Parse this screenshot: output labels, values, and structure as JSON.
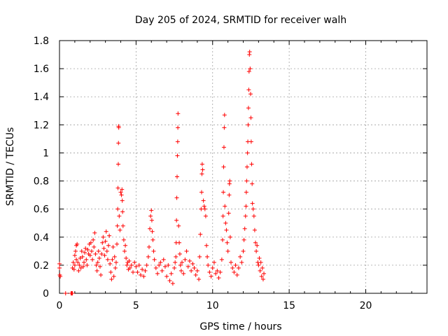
{
  "chart_data": {
    "type": "scatter",
    "title": "Day 205 of 2024, SRMTID for receiver walh",
    "xlabel": "GPS time / hours",
    "ylabel": "SRMTID / TECUs",
    "xlim": [
      0,
      24
    ],
    "ylim": [
      0,
      1.8
    ],
    "x_ticks": [
      0,
      5,
      10,
      15,
      20
    ],
    "x_tick_labels": [
      "0",
      "5",
      "10",
      "15",
      "20"
    ],
    "y_ticks": [
      0,
      0.2,
      0.4,
      0.6,
      0.8,
      1.0,
      1.2,
      1.4,
      1.6,
      1.8
    ],
    "y_tick_labels": [
      "0",
      "0.2",
      "0.4",
      "0.6",
      "0.8",
      "1",
      "1.2",
      "1.4",
      "1.6",
      "1.8"
    ],
    "grid": true,
    "marker": "+",
    "color": "#ff0000",
    "series": [
      {
        "name": "SRMTID",
        "points": [
          [
            0.0,
            0.21
          ],
          [
            0.0,
            0.18
          ],
          [
            0.02,
            0.13
          ],
          [
            0.05,
            0.12
          ],
          [
            0.4,
            0.0
          ],
          [
            0.75,
            0.0
          ],
          [
            0.8,
            0.0
          ],
          [
            0.85,
            0.0
          ],
          [
            0.85,
            0.18
          ],
          [
            0.9,
            0.22
          ],
          [
            0.95,
            0.17
          ],
          [
            1.0,
            0.27
          ],
          [
            1.0,
            0.2
          ],
          [
            1.05,
            0.3
          ],
          [
            1.1,
            0.34
          ],
          [
            1.1,
            0.24
          ],
          [
            1.15,
            0.35
          ],
          [
            1.2,
            0.22
          ],
          [
            1.25,
            0.16
          ],
          [
            1.3,
            0.2
          ],
          [
            1.35,
            0.25
          ],
          [
            1.4,
            0.18
          ],
          [
            1.45,
            0.3
          ],
          [
            1.5,
            0.26
          ],
          [
            1.55,
            0.19
          ],
          [
            1.6,
            0.22
          ],
          [
            1.65,
            0.29
          ],
          [
            1.7,
            0.32
          ],
          [
            1.75,
            0.24
          ],
          [
            1.8,
            0.2
          ],
          [
            1.85,
            0.31
          ],
          [
            1.9,
            0.28
          ],
          [
            1.95,
            0.35
          ],
          [
            2.0,
            0.27
          ],
          [
            2.05,
            0.36
          ],
          [
            2.1,
            0.3
          ],
          [
            2.15,
            0.24
          ],
          [
            2.2,
            0.38
          ],
          [
            2.25,
            0.33
          ],
          [
            2.3,
            0.43
          ],
          [
            2.35,
            0.28
          ],
          [
            2.4,
            0.2
          ],
          [
            2.45,
            0.16
          ],
          [
            2.5,
            0.22
          ],
          [
            2.55,
            0.3
          ],
          [
            2.6,
            0.25
          ],
          [
            2.65,
            0.19
          ],
          [
            2.7,
            0.13
          ],
          [
            2.75,
            0.28
          ],
          [
            2.8,
            0.36
          ],
          [
            2.85,
            0.4
          ],
          [
            2.9,
            0.32
          ],
          [
            2.95,
            0.27
          ],
          [
            3.0,
            0.37
          ],
          [
            3.05,
            0.44
          ],
          [
            3.1,
            0.3
          ],
          [
            3.15,
            0.24
          ],
          [
            3.2,
            0.34
          ],
          [
            3.25,
            0.41
          ],
          [
            3.3,
            0.21
          ],
          [
            3.35,
            0.15
          ],
          [
            3.4,
            0.1
          ],
          [
            3.45,
            0.24
          ],
          [
            3.5,
            0.33
          ],
          [
            3.55,
            0.12
          ],
          [
            3.6,
            0.26
          ],
          [
            3.65,
            0.18
          ],
          [
            3.7,
            0.22
          ],
          [
            3.75,
            0.35
          ],
          [
            3.78,
            0.48
          ],
          [
            3.8,
            0.6
          ],
          [
            3.82,
            0.75
          ],
          [
            3.84,
            0.92
          ],
          [
            3.85,
            1.07
          ],
          [
            3.86,
            1.19
          ],
          [
            3.87,
            1.18
          ],
          [
            3.9,
            0.55
          ],
          [
            3.95,
            0.45
          ],
          [
            4.0,
            0.72
          ],
          [
            4.05,
            0.7
          ],
          [
            4.08,
            0.74
          ],
          [
            4.1,
            0.66
          ],
          [
            4.12,
            0.58
          ],
          [
            4.15,
            0.48
          ],
          [
            4.2,
            0.38
          ],
          [
            4.25,
            0.3
          ],
          [
            4.3,
            0.34
          ],
          [
            4.35,
            0.25
          ],
          [
            4.4,
            0.2
          ],
          [
            4.45,
            0.22
          ],
          [
            4.5,
            0.17
          ],
          [
            4.55,
            0.23
          ],
          [
            4.6,
            0.18
          ],
          [
            4.7,
            0.2
          ],
          [
            4.8,
            0.15
          ],
          [
            4.9,
            0.22
          ],
          [
            5.0,
            0.19
          ],
          [
            5.1,
            0.15
          ],
          [
            5.2,
            0.2
          ],
          [
            5.3,
            0.13
          ],
          [
            5.4,
            0.17
          ],
          [
            5.5,
            0.12
          ],
          [
            5.6,
            0.16
          ],
          [
            5.7,
            0.2
          ],
          [
            5.8,
            0.26
          ],
          [
            5.85,
            0.33
          ],
          [
            5.9,
            0.46
          ],
          [
            5.95,
            0.55
          ],
          [
            6.0,
            0.59
          ],
          [
            6.03,
            0.52
          ],
          [
            6.06,
            0.44
          ],
          [
            6.1,
            0.38
          ],
          [
            6.15,
            0.3
          ],
          [
            6.2,
            0.24
          ],
          [
            6.3,
            0.18
          ],
          [
            6.4,
            0.14
          ],
          [
            6.5,
            0.2
          ],
          [
            6.6,
            0.22
          ],
          [
            6.7,
            0.16
          ],
          [
            6.8,
            0.24
          ],
          [
            6.9,
            0.19
          ],
          [
            7.0,
            0.12
          ],
          [
            7.1,
            0.2
          ],
          [
            7.2,
            0.09
          ],
          [
            7.3,
            0.14
          ],
          [
            7.4,
            0.07
          ],
          [
            7.5,
            0.18
          ],
          [
            7.55,
            0.22
          ],
          [
            7.6,
            0.26
          ],
          [
            7.62,
            0.36
          ],
          [
            7.64,
            0.52
          ],
          [
            7.66,
            0.68
          ],
          [
            7.68,
            0.83
          ],
          [
            7.7,
            0.98
          ],
          [
            7.72,
            1.08
          ],
          [
            7.73,
            1.18
          ],
          [
            7.74,
            1.28
          ],
          [
            7.78,
            0.48
          ],
          [
            7.82,
            0.36
          ],
          [
            7.86,
            0.28
          ],
          [
            7.9,
            0.2
          ],
          [
            7.95,
            0.16
          ],
          [
            8.0,
            0.22
          ],
          [
            8.1,
            0.14
          ],
          [
            8.2,
            0.24
          ],
          [
            8.3,
            0.3
          ],
          [
            8.4,
            0.19
          ],
          [
            8.5,
            0.23
          ],
          [
            8.6,
            0.16
          ],
          [
            8.7,
            0.21
          ],
          [
            8.8,
            0.18
          ],
          [
            8.9,
            0.13
          ],
          [
            9.0,
            0.16
          ],
          [
            9.1,
            0.1
          ],
          [
            9.15,
            0.26
          ],
          [
            9.2,
            0.42
          ],
          [
            9.25,
            0.6
          ],
          [
            9.28,
            0.72
          ],
          [
            9.3,
            0.85
          ],
          [
            9.32,
            0.92
          ],
          [
            9.35,
            0.88
          ],
          [
            9.4,
            0.66
          ],
          [
            9.45,
            0.62
          ],
          [
            9.5,
            0.6
          ],
          [
            9.55,
            0.55
          ],
          [
            9.6,
            0.34
          ],
          [
            9.65,
            0.26
          ],
          [
            9.7,
            0.2
          ],
          [
            9.8,
            0.15
          ],
          [
            9.9,
            0.12
          ],
          [
            10.0,
            0.18
          ],
          [
            10.1,
            0.22
          ],
          [
            10.2,
            0.14
          ],
          [
            10.3,
            0.16
          ],
          [
            10.4,
            0.11
          ],
          [
            10.5,
            0.15
          ],
          [
            10.6,
            0.24
          ],
          [
            10.65,
            0.38
          ],
          [
            10.68,
            0.55
          ],
          [
            10.7,
            0.72
          ],
          [
            10.72,
            0.9
          ],
          [
            10.74,
            1.04
          ],
          [
            10.76,
            1.18
          ],
          [
            10.78,
            1.27
          ],
          [
            10.8,
            0.62
          ],
          [
            10.85,
            0.5
          ],
          [
            10.9,
            0.45
          ],
          [
            10.95,
            0.36
          ],
          [
            11.0,
            0.3
          ],
          [
            11.05,
            0.57
          ],
          [
            11.08,
            0.7
          ],
          [
            11.1,
            0.78
          ],
          [
            11.12,
            0.8
          ],
          [
            11.15,
            0.4
          ],
          [
            11.2,
            0.22
          ],
          [
            11.3,
            0.18
          ],
          [
            11.4,
            0.15
          ],
          [
            11.5,
            0.2
          ],
          [
            11.6,
            0.13
          ],
          [
            11.7,
            0.18
          ],
          [
            11.8,
            0.26
          ],
          [
            11.9,
            0.22
          ],
          [
            12.0,
            0.3
          ],
          [
            12.05,
            0.38
          ],
          [
            12.1,
            0.46
          ],
          [
            12.15,
            0.55
          ],
          [
            12.18,
            0.62
          ],
          [
            12.2,
            0.72
          ],
          [
            12.22,
            0.8
          ],
          [
            12.25,
            0.9
          ],
          [
            12.28,
            1.0
          ],
          [
            12.3,
            1.08
          ],
          [
            12.32,
            1.2
          ],
          [
            12.34,
            1.32
          ],
          [
            12.36,
            1.45
          ],
          [
            12.38,
            1.58
          ],
          [
            12.4,
            1.7
          ],
          [
            12.42,
            1.72
          ],
          [
            12.45,
            1.6
          ],
          [
            12.48,
            1.42
          ],
          [
            12.5,
            1.25
          ],
          [
            12.52,
            1.08
          ],
          [
            12.55,
            0.92
          ],
          [
            12.58,
            0.78
          ],
          [
            12.6,
            0.64
          ],
          [
            12.65,
            0.6
          ],
          [
            12.7,
            0.55
          ],
          [
            12.75,
            0.45
          ],
          [
            12.8,
            0.36
          ],
          [
            12.85,
            0.3
          ],
          [
            12.9,
            0.34
          ],
          [
            12.95,
            0.22
          ],
          [
            13.0,
            0.2
          ],
          [
            13.05,
            0.25
          ],
          [
            13.1,
            0.16
          ],
          [
            13.15,
            0.22
          ],
          [
            13.2,
            0.12
          ],
          [
            13.25,
            0.18
          ],
          [
            13.3,
            0.1
          ],
          [
            13.35,
            0.14
          ]
        ]
      }
    ]
  }
}
